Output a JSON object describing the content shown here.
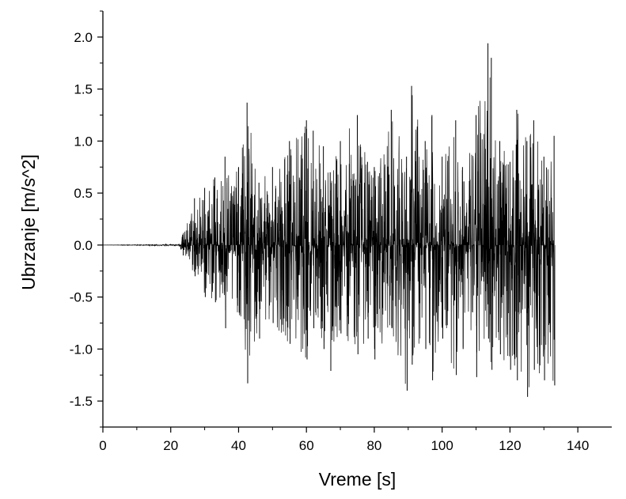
{
  "chart_data": {
    "type": "line",
    "title": "",
    "xlabel": "Vreme [s]",
    "ylabel": "Ubrzanje [m/s^2]",
    "xlim": [
      0,
      150
    ],
    "ylim": [
      -1.75,
      2.25
    ],
    "x_ticks": [
      0,
      20,
      40,
      60,
      80,
      100,
      120,
      140
    ],
    "y_ticks": [
      -1.5,
      -1.0,
      -0.5,
      0.0,
      0.5,
      1.0,
      1.5,
      2.0
    ],
    "x_tick_labels": [
      "0",
      "20",
      "40",
      "60",
      "80",
      "100",
      "120",
      "140"
    ],
    "y_tick_labels": [
      "-1.5",
      "-1.0",
      "-0.5",
      "0.0",
      "0.5",
      "1.0",
      "1.5",
      "2.0"
    ],
    "grid": false,
    "line_color": "#000000",
    "series": [
      {
        "x": [
          0,
          22.5,
          23.5,
          27,
          30,
          33,
          36,
          40,
          42.5,
          46,
          50,
          55,
          60,
          62,
          65,
          67,
          70,
          75,
          78,
          80,
          85,
          89.5,
          91,
          95,
          97,
          100,
          104,
          106,
          110,
          113.5,
          114.5,
          117,
          120,
          122,
          125,
          127,
          130,
          133
        ],
        "upper": [
          0.0,
          0.01,
          0.1,
          0.45,
          0.55,
          0.65,
          0.85,
          0.75,
          1.37,
          0.6,
          0.75,
          1.0,
          1.2,
          1.1,
          0.95,
          0.7,
          1.0,
          1.25,
          0.8,
          0.75,
          1.3,
          0.85,
          1.53,
          1.0,
          1.25,
          0.85,
          1.2,
          0.75,
          1.25,
          1.94,
          1.8,
          1.0,
          0.8,
          1.3,
          1.0,
          1.2,
          0.85,
          1.05
        ],
        "lower": [
          0.0,
          -0.01,
          -0.1,
          -0.3,
          -0.5,
          -0.55,
          -0.8,
          -0.65,
          -1.33,
          -0.9,
          -0.75,
          -0.95,
          -1.1,
          -0.8,
          -1.0,
          -1.21,
          -0.85,
          -1.05,
          -0.9,
          -1.1,
          -0.8,
          -1.4,
          -1.15,
          -1.0,
          -1.3,
          -0.9,
          -1.25,
          -1.0,
          -1.27,
          -0.9,
          -1.2,
          -1.05,
          -1.2,
          -1.3,
          -1.46,
          -1.2,
          -1.3,
          -1.35
        ]
      }
    ]
  }
}
